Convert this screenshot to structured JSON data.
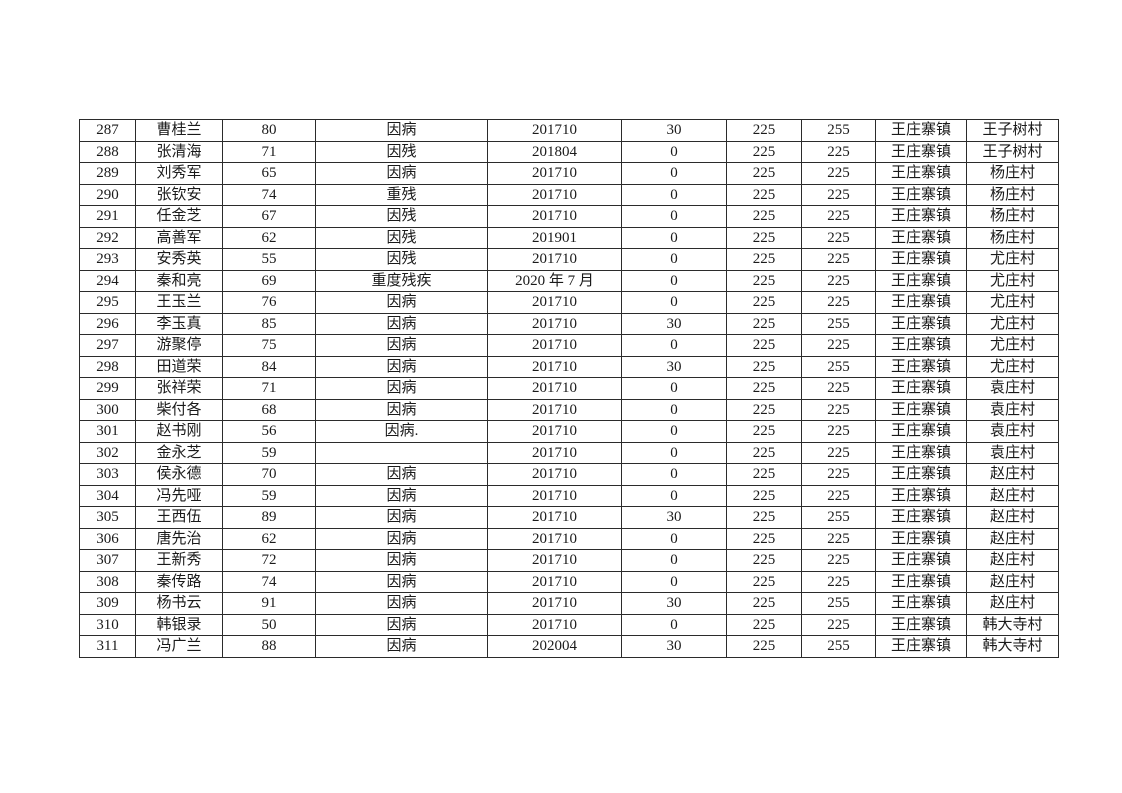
{
  "colors": {
    "page_background": "#ffffff",
    "border": "#2b2b2b",
    "text": "#1a1a1a"
  },
  "table": {
    "column_keys": [
      "no",
      "name",
      "age",
      "reason",
      "date",
      "amount",
      "base",
      "total",
      "town",
      "village"
    ],
    "rows": [
      {
        "no": "287",
        "name": "曹桂兰",
        "age": "80",
        "reason": "因病",
        "date": "201710",
        "amount": "30",
        "base": "225",
        "total": "255",
        "town": "王庄寨镇",
        "village": "王子树村"
      },
      {
        "no": "288",
        "name": "张清海",
        "age": "71",
        "reason": "因残",
        "date": "201804",
        "amount": "0",
        "base": "225",
        "total": "225",
        "town": "王庄寨镇",
        "village": "王子树村"
      },
      {
        "no": "289",
        "name": "刘秀军",
        "age": "65",
        "reason": "因病",
        "date": "201710",
        "amount": "0",
        "base": "225",
        "total": "225",
        "town": "王庄寨镇",
        "village": "杨庄村"
      },
      {
        "no": "290",
        "name": "张钦安",
        "age": "74",
        "reason": "重残",
        "date": "201710",
        "amount": "0",
        "base": "225",
        "total": "225",
        "town": "王庄寨镇",
        "village": "杨庄村"
      },
      {
        "no": "291",
        "name": "任金芝",
        "age": "67",
        "reason": "因残",
        "date": "201710",
        "amount": "0",
        "base": "225",
        "total": "225",
        "town": "王庄寨镇",
        "village": "杨庄村"
      },
      {
        "no": "292",
        "name": "高善军",
        "age": "62",
        "reason": "因残",
        "date": "201901",
        "amount": "0",
        "base": "225",
        "total": "225",
        "town": "王庄寨镇",
        "village": "杨庄村"
      },
      {
        "no": "293",
        "name": "安秀英",
        "age": "55",
        "reason": "因残",
        "date": "201710",
        "amount": "0",
        "base": "225",
        "total": "225",
        "town": "王庄寨镇",
        "village": "尤庄村"
      },
      {
        "no": "294",
        "name": "秦和亮",
        "age": "69",
        "reason": "重度残疾",
        "date": "2020 年 7 月",
        "amount": "0",
        "base": "225",
        "total": "225",
        "town": "王庄寨镇",
        "village": "尤庄村"
      },
      {
        "no": "295",
        "name": "王玉兰",
        "age": "76",
        "reason": "因病",
        "date": "201710",
        "amount": "0",
        "base": "225",
        "total": "225",
        "town": "王庄寨镇",
        "village": "尤庄村"
      },
      {
        "no": "296",
        "name": "李玉真",
        "age": "85",
        "reason": "因病",
        "date": "201710",
        "amount": "30",
        "base": "225",
        "total": "255",
        "town": "王庄寨镇",
        "village": "尤庄村"
      },
      {
        "no": "297",
        "name": "游聚停",
        "age": "75",
        "reason": "因病",
        "date": "201710",
        "amount": "0",
        "base": "225",
        "total": "225",
        "town": "王庄寨镇",
        "village": "尤庄村"
      },
      {
        "no": "298",
        "name": "田道荣",
        "age": "84",
        "reason": "因病",
        "date": "201710",
        "amount": "30",
        "base": "225",
        "total": "255",
        "town": "王庄寨镇",
        "village": "尤庄村"
      },
      {
        "no": "299",
        "name": "张祥荣",
        "age": "71",
        "reason": "因病",
        "date": "201710",
        "amount": "0",
        "base": "225",
        "total": "225",
        "town": "王庄寨镇",
        "village": "袁庄村"
      },
      {
        "no": "300",
        "name": "柴付各",
        "age": "68",
        "reason": "因病",
        "date": "201710",
        "amount": "0",
        "base": "225",
        "total": "225",
        "town": "王庄寨镇",
        "village": "袁庄村"
      },
      {
        "no": "301",
        "name": "赵书刚",
        "age": "56",
        "reason": "因病.",
        "date": "201710",
        "amount": "0",
        "base": "225",
        "total": "225",
        "town": "王庄寨镇",
        "village": "袁庄村"
      },
      {
        "no": "302",
        "name": "金永芝",
        "age": "59",
        "reason": "",
        "date": "201710",
        "amount": "0",
        "base": "225",
        "total": "225",
        "town": "王庄寨镇",
        "village": "袁庄村"
      },
      {
        "no": "303",
        "name": "侯永德",
        "age": "70",
        "reason": "因病",
        "date": "201710",
        "amount": "0",
        "base": "225",
        "total": "225",
        "town": "王庄寨镇",
        "village": "赵庄村"
      },
      {
        "no": "304",
        "name": "冯先哑",
        "age": "59",
        "reason": "因病",
        "date": "201710",
        "amount": "0",
        "base": "225",
        "total": "225",
        "town": "王庄寨镇",
        "village": "赵庄村"
      },
      {
        "no": "305",
        "name": "王西伍",
        "age": "89",
        "reason": "因病",
        "date": "201710",
        "amount": "30",
        "base": "225",
        "total": "255",
        "town": "王庄寨镇",
        "village": "赵庄村"
      },
      {
        "no": "306",
        "name": "唐先治",
        "age": "62",
        "reason": "因病",
        "date": "201710",
        "amount": "0",
        "base": "225",
        "total": "225",
        "town": "王庄寨镇",
        "village": "赵庄村"
      },
      {
        "no": "307",
        "name": "王新秀",
        "age": "72",
        "reason": "因病",
        "date": "201710",
        "amount": "0",
        "base": "225",
        "total": "225",
        "town": "王庄寨镇",
        "village": "赵庄村"
      },
      {
        "no": "308",
        "name": "秦传路",
        "age": "74",
        "reason": "因病",
        "date": "201710",
        "amount": "0",
        "base": "225",
        "total": "225",
        "town": "王庄寨镇",
        "village": "赵庄村"
      },
      {
        "no": "309",
        "name": "杨书云",
        "age": "91",
        "reason": "因病",
        "date": "201710",
        "amount": "30",
        "base": "225",
        "total": "255",
        "town": "王庄寨镇",
        "village": "赵庄村"
      },
      {
        "no": "310",
        "name": "韩银录",
        "age": "50",
        "reason": "因病",
        "date": "201710",
        "amount": "0",
        "base": "225",
        "total": "225",
        "town": "王庄寨镇",
        "village": "韩大寺村"
      },
      {
        "no": "311",
        "name": "冯广兰",
        "age": "88",
        "reason": "因病",
        "date": "202004",
        "amount": "30",
        "base": "225",
        "total": "255",
        "town": "王庄寨镇",
        "village": "韩大寺村"
      }
    ]
  }
}
